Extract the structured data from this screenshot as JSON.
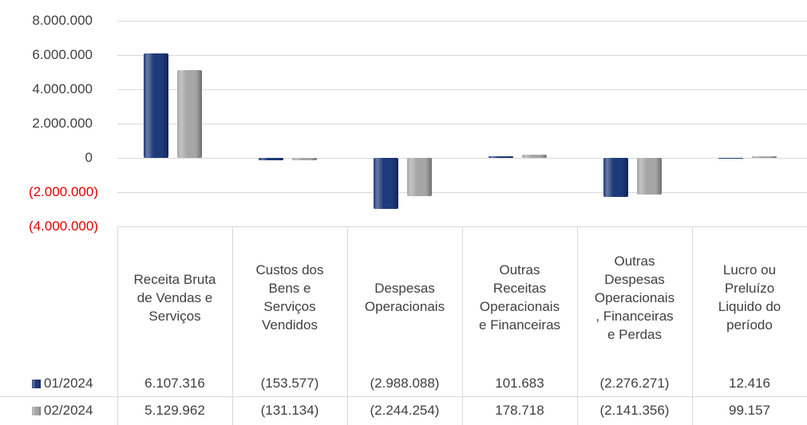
{
  "chart_data": {
    "type": "bar",
    "categories": [
      "Receita Bruta de Vendas e Serviços",
      "Custos dos Bens e Serviços Vendidos",
      "Despesas Operacionais",
      "Outras Receitas Operacionais e Financeiras",
      "Outras Despesas Operacionais, Financeiras e Perdas",
      "Lucro ou Preluízo Liquido do período"
    ],
    "series": [
      {
        "name": "01/2024",
        "color": "#1f3a7a",
        "values": [
          6107316,
          -153577,
          -2988088,
          101683,
          -2276271,
          12416
        ],
        "value_labels": [
          "6.107.316",
          "(153.577)",
          "(2.988.088)",
          "101.683",
          "(2.276.271)",
          "12.416"
        ]
      },
      {
        "name": "02/2024",
        "color": "#a6a6a6",
        "values": [
          5129962,
          -131134,
          -2244254,
          178718,
          -2141356,
          99157
        ],
        "value_labels": [
          "5.129.962",
          "(131.134)",
          "(2.244.254)",
          "178.718",
          "(2.141.356)",
          "99.157"
        ]
      }
    ],
    "ylim": [
      -4000000,
      8000000
    ],
    "yticks": [
      {
        "value": 8000000,
        "label": "8.000.000"
      },
      {
        "value": 6000000,
        "label": "6.000.000"
      },
      {
        "value": 4000000,
        "label": "4.000.000"
      },
      {
        "value": 2000000,
        "label": "2.000.000"
      },
      0,
      {
        "value": -2000000,
        "label": "(2.000.000)"
      },
      {
        "value": -4000000,
        "label": "(4.000.000)"
      }
    ],
    "grid": true,
    "negative_tick_color": "#e00000"
  }
}
